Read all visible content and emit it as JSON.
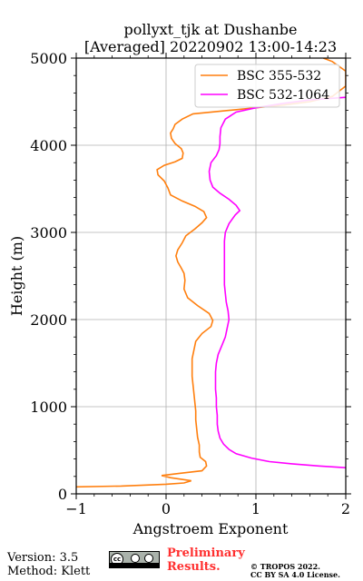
{
  "chart_data": {
    "type": "line",
    "title": "pollyxt_tjk at Dushanbe",
    "subtitle": "[Averaged] 20220902 13:00-14:23",
    "xlabel": "Angstroem Exponent",
    "ylabel": "Height (m)",
    "xlim": [
      -1,
      2
    ],
    "ylim": [
      0,
      5000
    ],
    "xticks": [
      "−1",
      "0",
      "1",
      "2"
    ],
    "yticks": [
      "0",
      "1000",
      "2000",
      "3000",
      "4000",
      "5000"
    ],
    "grid": true,
    "legend_position": "top-right",
    "series": [
      {
        "name": "BSC 355-532",
        "color": "#ff7f0e",
        "points": [
          [
            -1.0,
            80
          ],
          [
            -0.5,
            90
          ],
          [
            0.0,
            110
          ],
          [
            0.2,
            125
          ],
          [
            0.28,
            150
          ],
          [
            0.05,
            185
          ],
          [
            -0.05,
            210
          ],
          [
            0.15,
            235
          ],
          [
            0.4,
            265
          ],
          [
            0.45,
            320
          ],
          [
            0.44,
            370
          ],
          [
            0.38,
            420
          ],
          [
            0.37,
            480
          ],
          [
            0.37,
            560
          ],
          [
            0.35,
            650
          ],
          [
            0.34,
            750
          ],
          [
            0.33,
            850
          ],
          [
            0.33,
            950
          ],
          [
            0.32,
            1050
          ],
          [
            0.31,
            1150
          ],
          [
            0.3,
            1250
          ],
          [
            0.29,
            1350
          ],
          [
            0.29,
            1450
          ],
          [
            0.29,
            1550
          ],
          [
            0.31,
            1650
          ],
          [
            0.33,
            1750
          ],
          [
            0.4,
            1840
          ],
          [
            0.5,
            1920
          ],
          [
            0.52,
            1990
          ],
          [
            0.48,
            2070
          ],
          [
            0.35,
            2160
          ],
          [
            0.24,
            2250
          ],
          [
            0.2,
            2350
          ],
          [
            0.21,
            2450
          ],
          [
            0.2,
            2530
          ],
          [
            0.17,
            2590
          ],
          [
            0.13,
            2660
          ],
          [
            0.11,
            2730
          ],
          [
            0.13,
            2800
          ],
          [
            0.18,
            2880
          ],
          [
            0.22,
            2960
          ],
          [
            0.32,
            3040
          ],
          [
            0.4,
            3110
          ],
          [
            0.45,
            3170
          ],
          [
            0.42,
            3240
          ],
          [
            0.32,
            3300
          ],
          [
            0.18,
            3360
          ],
          [
            0.05,
            3430
          ],
          [
            0.02,
            3510
          ],
          [
            -0.02,
            3590
          ],
          [
            -0.09,
            3660
          ],
          [
            -0.1,
            3720
          ],
          [
            -0.02,
            3770
          ],
          [
            0.1,
            3810
          ],
          [
            0.18,
            3850
          ],
          [
            0.19,
            3910
          ],
          [
            0.17,
            3960
          ],
          [
            0.1,
            4020
          ],
          [
            0.06,
            4080
          ],
          [
            0.05,
            4140
          ],
          [
            0.08,
            4190
          ],
          [
            0.1,
            4240
          ],
          [
            0.18,
            4300
          ],
          [
            0.3,
            4360
          ],
          [
            0.7,
            4400
          ],
          [
            1.0,
            4430
          ],
          [
            1.3,
            4460
          ],
          [
            1.6,
            4500
          ],
          [
            1.85,
            4560
          ],
          [
            2.0,
            4680
          ],
          [
            2.0,
            4850
          ],
          [
            1.85,
            4960
          ],
          [
            1.75,
            5000
          ]
        ]
      },
      {
        "name": "BSC 532-1064",
        "color": "#ff00ff",
        "points": [
          [
            2.0,
            300
          ],
          [
            1.7,
            320
          ],
          [
            1.4,
            345
          ],
          [
            1.15,
            370
          ],
          [
            0.95,
            410
          ],
          [
            0.78,
            460
          ],
          [
            0.7,
            510
          ],
          [
            0.64,
            570
          ],
          [
            0.6,
            640
          ],
          [
            0.58,
            720
          ],
          [
            0.57,
            800
          ],
          [
            0.57,
            900
          ],
          [
            0.56,
            1000
          ],
          [
            0.56,
            1100
          ],
          [
            0.55,
            1200
          ],
          [
            0.55,
            1300
          ],
          [
            0.55,
            1400
          ],
          [
            0.56,
            1500
          ],
          [
            0.58,
            1600
          ],
          [
            0.62,
            1700
          ],
          [
            0.66,
            1800
          ],
          [
            0.68,
            1900
          ],
          [
            0.7,
            2000
          ],
          [
            0.69,
            2100
          ],
          [
            0.67,
            2200
          ],
          [
            0.66,
            2300
          ],
          [
            0.65,
            2400
          ],
          [
            0.65,
            2500
          ],
          [
            0.65,
            2600
          ],
          [
            0.65,
            2700
          ],
          [
            0.65,
            2800
          ],
          [
            0.65,
            2900
          ],
          [
            0.66,
            3000
          ],
          [
            0.7,
            3100
          ],
          [
            0.77,
            3200
          ],
          [
            0.82,
            3250
          ],
          [
            0.78,
            3310
          ],
          [
            0.7,
            3380
          ],
          [
            0.6,
            3450
          ],
          [
            0.52,
            3520
          ],
          [
            0.49,
            3600
          ],
          [
            0.48,
            3700
          ],
          [
            0.5,
            3800
          ],
          [
            0.56,
            3880
          ],
          [
            0.59,
            3950
          ],
          [
            0.6,
            4020
          ],
          [
            0.6,
            4100
          ],
          [
            0.61,
            4200
          ],
          [
            0.66,
            4300
          ],
          [
            0.78,
            4380
          ],
          [
            1.0,
            4430
          ],
          [
            1.3,
            4480
          ],
          [
            1.6,
            4520
          ],
          [
            2.0,
            4550
          ]
        ]
      }
    ]
  },
  "footer": {
    "version": "Version: 3.5",
    "method": "Method: Klett",
    "preliminary_line1": "Preliminary",
    "preliminary_line2": "Results.",
    "copyright_line1": "© TROPOS 2022.",
    "copyright_line2": "CC BY SA 4.0 License.",
    "license_badge_icon": "cc-by-sa-icon"
  }
}
